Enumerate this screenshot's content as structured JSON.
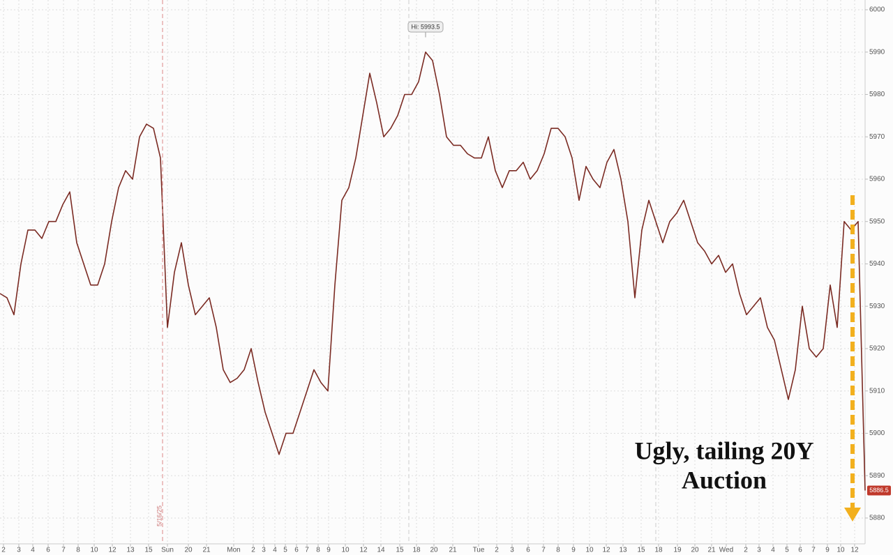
{
  "chart_data": {
    "type": "line",
    "x": [
      0,
      1,
      2,
      3,
      4,
      5,
      6,
      7,
      8,
      9,
      10,
      11,
      12,
      13,
      14,
      15,
      16,
      17,
      18,
      19,
      20,
      21,
      22,
      23,
      24,
      25,
      26,
      27,
      28,
      29,
      30,
      31,
      32,
      33,
      34,
      35,
      36,
      37,
      38,
      39,
      40,
      41,
      42,
      43,
      44,
      45,
      46,
      47,
      48,
      49,
      50,
      51,
      52,
      53,
      54,
      55,
      56,
      57,
      58,
      59,
      60,
      61,
      62,
      63,
      64,
      65,
      66,
      67,
      68,
      69,
      70,
      71,
      72,
      73,
      74,
      75,
      76,
      77,
      78,
      79,
      80,
      81,
      82,
      83,
      84,
      85,
      86,
      87,
      88,
      89,
      90,
      91,
      92,
      93,
      94,
      95,
      96,
      97,
      98,
      99,
      100,
      101,
      102,
      103,
      104,
      105,
      106,
      107,
      108,
      109,
      110,
      111,
      112,
      113,
      114,
      115,
      116,
      117,
      118,
      119,
      120,
      121,
      122,
      123,
      124
    ],
    "series": [
      {
        "color": "#7a2a22",
        "values": [
          5933,
          5932,
          5928,
          5940,
          5948,
          5948,
          5946,
          5950,
          5950,
          5954,
          5957,
          5945,
          5940,
          5935,
          5935,
          5940,
          5950,
          5958,
          5962,
          5960,
          5970,
          5973,
          5972,
          5965,
          5925,
          5938,
          5945,
          5935,
          5928,
          5930,
          5932,
          5925,
          5915,
          5912,
          5913,
          5915,
          5920,
          5912,
          5905,
          5900,
          5895,
          5900,
          5900,
          5905,
          5910,
          5915,
          5912,
          5910,
          5935,
          5955,
          5958,
          5965,
          5975,
          5985,
          5978,
          5970,
          5972,
          5975,
          5980,
          5980,
          5983,
          5990,
          5988,
          5980,
          5970,
          5968,
          5968,
          5966,
          5965,
          5965,
          5970,
          5962,
          5958,
          5962,
          5962,
          5964,
          5960,
          5962,
          5966,
          5972,
          5972,
          5970,
          5965,
          5955,
          5963,
          5960,
          5958,
          5964,
          5967,
          5960,
          5950,
          5932,
          5948,
          5955,
          5950,
          5945,
          5950,
          5952,
          5955,
          5950,
          5945,
          5943,
          5940,
          5942,
          5938,
          5940,
          5933,
          5928,
          5930,
          5932,
          5925,
          5922,
          5915,
          5908,
          5915,
          5930,
          5920,
          5918,
          5920,
          5935,
          5925,
          5950,
          5948,
          5950,
          5886.5
        ]
      }
    ],
    "xlim": [
      0,
      124
    ],
    "ylim": [
      5873.9,
      6002.3
    ],
    "yticks": [
      5880,
      5890,
      5900,
      5910,
      5920,
      5930,
      5940,
      5950,
      5960,
      5970,
      5980,
      5990,
      6000
    ],
    "xticks": [
      {
        "value": 0.5,
        "label": "2"
      },
      {
        "value": 2.7,
        "label": "3"
      },
      {
        "value": 4.7,
        "label": "4"
      },
      {
        "value": 6.9,
        "label": "6"
      },
      {
        "value": 9.1,
        "label": "7"
      },
      {
        "value": 11.2,
        "label": "8"
      },
      {
        "value": 13.5,
        "label": "10"
      },
      {
        "value": 16.1,
        "label": "12"
      },
      {
        "value": 18.7,
        "label": "13"
      },
      {
        "value": 21.3,
        "label": "15"
      },
      {
        "value": 24.0,
        "label": "Sun"
      },
      {
        "value": 27.0,
        "label": "20"
      },
      {
        "value": 29.6,
        "label": "21"
      },
      {
        "value": 33.5,
        "label": "Mon"
      },
      {
        "value": 36.3,
        "label": "2"
      },
      {
        "value": 37.8,
        "label": "3"
      },
      {
        "value": 39.4,
        "label": "4"
      },
      {
        "value": 40.9,
        "label": "5"
      },
      {
        "value": 42.5,
        "label": "6"
      },
      {
        "value": 44.0,
        "label": "7"
      },
      {
        "value": 45.6,
        "label": "8"
      },
      {
        "value": 47.1,
        "label": "9"
      },
      {
        "value": 49.5,
        "label": "10"
      },
      {
        "value": 52.1,
        "label": "12"
      },
      {
        "value": 54.6,
        "label": "14"
      },
      {
        "value": 57.3,
        "label": "15"
      },
      {
        "value": 59.7,
        "label": "18"
      },
      {
        "value": 62.2,
        "label": "20"
      },
      {
        "value": 64.9,
        "label": "21"
      },
      {
        "value": 68.6,
        "label": "Tue"
      },
      {
        "value": 71.2,
        "label": "2"
      },
      {
        "value": 73.4,
        "label": "3"
      },
      {
        "value": 75.7,
        "label": "6"
      },
      {
        "value": 77.9,
        "label": "7"
      },
      {
        "value": 80.0,
        "label": "8"
      },
      {
        "value": 82.2,
        "label": "9"
      },
      {
        "value": 84.5,
        "label": "10"
      },
      {
        "value": 86.9,
        "label": "12"
      },
      {
        "value": 89.3,
        "label": "13"
      },
      {
        "value": 91.9,
        "label": "15"
      },
      {
        "value": 94.4,
        "label": "18"
      },
      {
        "value": 97.1,
        "label": "19"
      },
      {
        "value": 99.6,
        "label": "20"
      },
      {
        "value": 102.0,
        "label": "21"
      },
      {
        "value": 104.1,
        "label": "Wed"
      },
      {
        "value": 106.9,
        "label": "2"
      },
      {
        "value": 108.8,
        "label": "3"
      },
      {
        "value": 110.8,
        "label": "4"
      },
      {
        "value": 112.8,
        "label": "5"
      },
      {
        "value": 114.7,
        "label": "6"
      },
      {
        "value": 116.6,
        "label": "7"
      },
      {
        "value": 118.6,
        "label": "9"
      },
      {
        "value": 120.5,
        "label": "10"
      },
      {
        "value": 122.5,
        "label": "12"
      }
    ],
    "grid": true,
    "date_marker": {
      "x": 23.3,
      "label": "5/16/25"
    },
    "high": {
      "x": 61.0,
      "y": 5993.5,
      "label": "Hi: 5993.5"
    },
    "annotation": [
      "Ugly, tailing 20Y",
      "Auction"
    ]
  }
}
